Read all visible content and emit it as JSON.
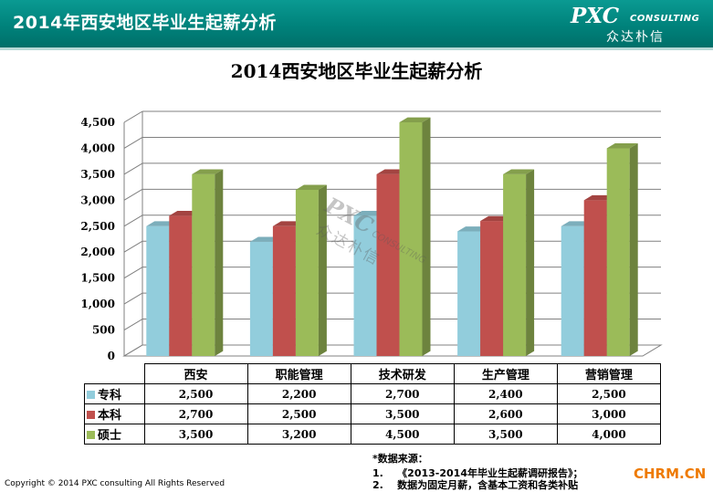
{
  "header": {
    "title": "2014年西安地区毕业生起薪分析",
    "logo_main": "PXC",
    "logo_sub": "CONSULTING",
    "logo_cn": "众达朴信",
    "bg_color": "#00827b"
  },
  "chart_data": {
    "type": "bar",
    "title": "2014西安地区毕业生起薪分析",
    "xlabel": "",
    "ylabel": "",
    "categories": [
      "西安",
      "职能管理",
      "技术研发",
      "生产管理",
      "营销管理"
    ],
    "series": [
      {
        "name": "专科",
        "color": "#92cddc",
        "values": [
          2500,
          2200,
          2700,
          2400,
          2500
        ]
      },
      {
        "name": "本科",
        "color": "#c0504d",
        "values": [
          2700,
          2500,
          3500,
          2600,
          3000
        ]
      },
      {
        "name": "硕士",
        "color": "#9bbb59",
        "values": [
          3500,
          3200,
          4500,
          3500,
          4000
        ]
      }
    ],
    "ylim": [
      0,
      4500
    ],
    "yticks": [
      0,
      500,
      1000,
      1500,
      2000,
      2500,
      3000,
      3500,
      4000,
      4500
    ],
    "ytick_labels": [
      "0",
      "500",
      "1,000",
      "1,500",
      "2,000",
      "2,500",
      "3,000",
      "3,500",
      "4,000",
      "4,500"
    ],
    "grid": true,
    "legend": "data-table",
    "value_labels": [
      [
        "2,500",
        "2,200",
        "2,700",
        "2,400",
        "2,500"
      ],
      [
        "2,700",
        "2,500",
        "3,500",
        "2,600",
        "3,000"
      ],
      [
        "3,500",
        "3,200",
        "4,500",
        "3,500",
        "4,000"
      ]
    ]
  },
  "watermark": {
    "main": "PXC",
    "sub": "CONSULTING",
    "cn": "众达朴信"
  },
  "source": {
    "title": "*数据来源：",
    "items": [
      {
        "num": "1.",
        "text": "《2013-2014年毕业生起薪调研报告》；"
      },
      {
        "num": "2.",
        "text": "数据为固定月薪，含基本工资和各类补贴"
      }
    ]
  },
  "footer": {
    "copyright": "Copyright © 2014 PXC consulting All Rights Reserved",
    "site": "CHRM.CN"
  }
}
